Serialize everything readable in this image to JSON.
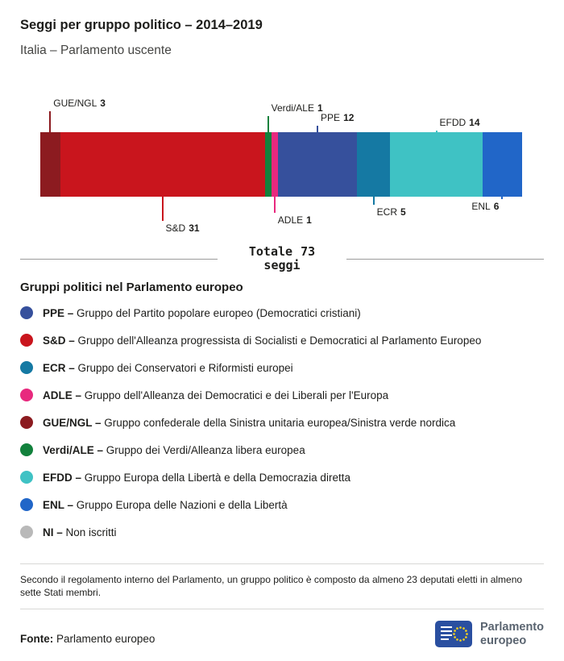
{
  "header": {
    "title": "Seggi per gruppo politico – 2014–2019",
    "subtitle": "Italia – Parlamento uscente"
  },
  "chart_data": {
    "type": "bar",
    "orientation": "horizontal",
    "stacked": true,
    "title": "Seggi per gruppo politico – 2014–2019",
    "total_seats": 73,
    "total_label": "Totale",
    "total_value": "73",
    "total_unit": "seggi",
    "groups": [
      {
        "name": "GUE/NGL",
        "seats": 3,
        "color": "#8c1b20",
        "callout": {
          "side": "above",
          "line": 26,
          "label_pos": "right"
        }
      },
      {
        "name": "S&D",
        "seats": 31,
        "color": "#c9151d",
        "callout": {
          "side": "below",
          "line": 30,
          "label_pos": "right"
        }
      },
      {
        "name": "Verdi/ALE",
        "seats": 1,
        "color": "#12813c",
        "callout": {
          "side": "above",
          "line": 20,
          "label_pos": "right"
        }
      },
      {
        "name": "ADLE",
        "seats": 1,
        "color": "#e8297e",
        "callout": {
          "side": "below",
          "line": 20,
          "label_pos": "right"
        }
      },
      {
        "name": "PPE",
        "seats": 12,
        "color": "#36509c",
        "callout": {
          "side": "above",
          "line": 8,
          "label_pos": "right"
        }
      },
      {
        "name": "ECR",
        "seats": 5,
        "color": "#1579a3",
        "callout": {
          "side": "below",
          "line": 10,
          "label_pos": "right"
        }
      },
      {
        "name": "EFDD",
        "seats": 14,
        "color": "#3fc2c4",
        "callout": {
          "side": "above",
          "line": 2,
          "label_pos": "right"
        }
      },
      {
        "name": "ENL",
        "seats": 6,
        "color": "#2166c8",
        "callout": {
          "side": "below",
          "line": 3,
          "label_pos": "left"
        }
      }
    ]
  },
  "legend": {
    "heading": "Gruppi politici nel Parlamento europeo",
    "items": [
      {
        "abbr": "PPE –",
        "desc": "Gruppo del Partito popolare europeo (Democratici cristiani)",
        "color": "#36509c"
      },
      {
        "abbr": "S&D –",
        "desc": "Gruppo dell'Alleanza progressista di Socialisti e Democratici al Parlamento Europeo",
        "color": "#c9151d"
      },
      {
        "abbr": "ECR –",
        "desc": "Gruppo dei Conservatori e Riformisti europei",
        "color": "#1579a3"
      },
      {
        "abbr": "ADLE –",
        "desc": "Gruppo dell'Alleanza dei Democratici e dei Liberali per l'Europa",
        "color": "#e8297e"
      },
      {
        "abbr": "GUE/NGL –",
        "desc": "Gruppo confederale della Sinistra unitaria europea/Sinistra verde nordica",
        "color": "#8c1b20"
      },
      {
        "abbr": "Verdi/ALE –",
        "desc": "Gruppo dei Verdi/Alleanza libera europea",
        "color": "#12813c"
      },
      {
        "abbr": "EFDD –",
        "desc": "Gruppo Europa della Libertà e della Democrazia diretta",
        "color": "#3fc2c4"
      },
      {
        "abbr": "ENL –",
        "desc": "Gruppo Europa delle Nazioni e della Libertà",
        "color": "#2166c8"
      },
      {
        "abbr": "NI –",
        "desc": "Non iscritti",
        "color": "#b9b9b9"
      }
    ]
  },
  "note": "Secondo il regolamento interno del Parlamento, un gruppo politico è composto da almeno 23 deputati eletti in almeno sette Stati membri.",
  "footer": {
    "source_label": "Fonte:",
    "source": "Parlamento europeo",
    "logo_line1": "Parlamento",
    "logo_line2": "europeo"
  }
}
